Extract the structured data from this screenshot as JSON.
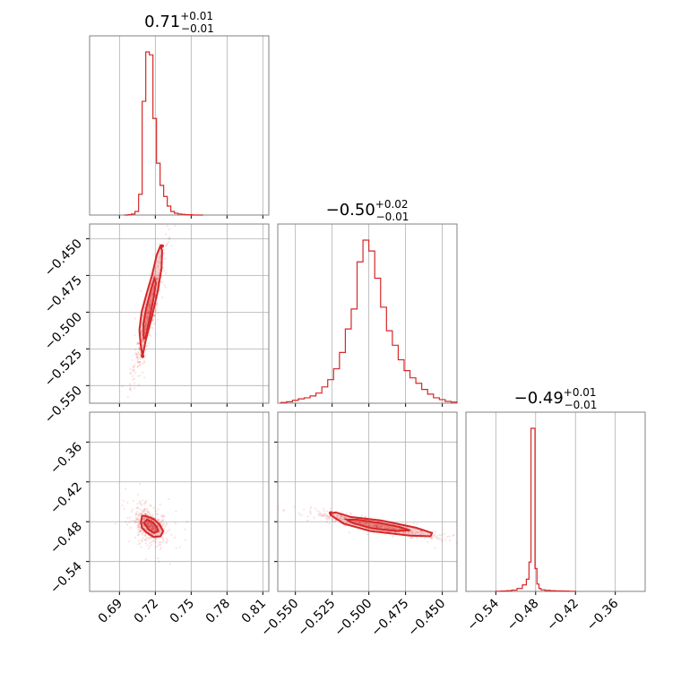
{
  "chart_data": {
    "type": "corner",
    "color": "#d62728",
    "grid": true,
    "parameters": [
      {
        "index": 0,
        "median": "0.71",
        "plus": "+0.01",
        "minus": "−0.01",
        "range": [
          0.665,
          0.815
        ],
        "ticks": [
          0.69,
          0.72,
          0.75,
          0.78,
          0.81
        ],
        "tick_labels": [
          "0.69",
          "0.72",
          "0.75",
          "0.78",
          "0.81"
        ]
      },
      {
        "index": 1,
        "median": "−0.50",
        "plus": "+0.02",
        "minus": "−0.01",
        "range": [
          -0.562,
          -0.44
        ],
        "ticks": [
          -0.55,
          -0.525,
          -0.5,
          -0.475,
          -0.45
        ],
        "tick_labels": [
          "−0.550",
          "−0.525",
          "−0.500",
          "−0.475",
          "−0.450"
        ]
      },
      {
        "index": 2,
        "median": "−0.49",
        "plus": "+0.01",
        "minus": "−0.01",
        "range": [
          -0.585,
          -0.315
        ],
        "ticks": [
          -0.54,
          -0.48,
          -0.42,
          -0.36
        ],
        "tick_labels": [
          "−0.54",
          "−0.48",
          "−0.42",
          "−0.36"
        ]
      }
    ],
    "histograms": [
      {
        "param": 0,
        "bins": [
          0.694,
          0.697,
          0.7,
          0.703,
          0.706,
          0.709,
          0.712,
          0.715,
          0.718,
          0.721,
          0.724,
          0.727,
          0.73,
          0.733,
          0.736,
          0.739,
          0.742,
          0.745,
          0.748,
          0.751,
          0.754,
          0.757,
          0.76
        ],
        "counts": [
          0,
          1,
          3,
          10,
          58,
          318,
          456,
          448,
          270,
          145,
          83,
          52,
          25,
          10,
          5,
          3,
          2,
          1,
          1,
          0,
          0,
          0
        ]
      },
      {
        "param": 1,
        "bins": [
          -0.56,
          -0.556,
          -0.552,
          -0.548,
          -0.544,
          -0.54,
          -0.536,
          -0.532,
          -0.528,
          -0.524,
          -0.52,
          -0.516,
          -0.512,
          -0.508,
          -0.504,
          -0.5,
          -0.496,
          -0.492,
          -0.488,
          -0.484,
          -0.48,
          -0.476,
          -0.472,
          -0.468,
          -0.464,
          -0.46,
          -0.456,
          -0.452,
          -0.448,
          -0.444,
          -0.44
        ],
        "counts": [
          2,
          4,
          8,
          12,
          15,
          20,
          28,
          45,
          65,
          95,
          140,
          205,
          260,
          390,
          450,
          420,
          345,
          265,
          200,
          160,
          120,
          90,
          70,
          55,
          38,
          25,
          15,
          10,
          5,
          3
        ]
      },
      {
        "param": 2,
        "bins": [
          -0.54,
          -0.532,
          -0.524,
          -0.516,
          -0.508,
          -0.5,
          -0.494,
          -0.49,
          -0.487,
          -0.484,
          -0.481,
          -0.478,
          -0.475,
          -0.472,
          -0.466,
          -0.458,
          -0.45,
          -0.44,
          -0.43,
          -0.42
        ],
        "counts": [
          1,
          2,
          4,
          8,
          18,
          40,
          75,
          180,
          1000,
          1000,
          140,
          45,
          18,
          10,
          6,
          4,
          3,
          2,
          1
        ]
      }
    ],
    "scatter_2d": [
      {
        "x_param": 0,
        "y_param": 1,
        "center": [
          0.7135,
          -0.505
        ],
        "sd": [
          0.007,
          0.022
        ],
        "corr": 0.93
      },
      {
        "x_param": 0,
        "y_param": 2,
        "center": [
          0.7155,
          -0.485
        ],
        "sd": [
          0.0065,
          0.012
        ],
        "corr": -0.35
      },
      {
        "x_param": 1,
        "y_param": 2,
        "center": [
          -0.495,
          -0.486
        ],
        "sd": [
          0.021,
          0.01
        ],
        "corr": -0.9
      }
    ],
    "contours_2d": [
      {
        "x_param": 0,
        "y_param": 1,
        "outer": [
          [
            0.7093,
            -0.53
          ],
          [
            0.7077,
            -0.522
          ],
          [
            0.7067,
            -0.512
          ],
          [
            0.7085,
            -0.5
          ],
          [
            0.7125,
            -0.488
          ],
          [
            0.7172,
            -0.475
          ],
          [
            0.7212,
            -0.461
          ],
          [
            0.7242,
            -0.455
          ],
          [
            0.7257,
            -0.458
          ],
          [
            0.7252,
            -0.47
          ],
          [
            0.722,
            -0.486
          ],
          [
            0.7172,
            -0.503
          ],
          [
            0.7123,
            -0.518
          ]
        ],
        "inner": [
          [
            0.7103,
            -0.518
          ],
          [
            0.71,
            -0.508
          ],
          [
            0.7122,
            -0.498
          ],
          [
            0.7162,
            -0.485
          ],
          [
            0.7192,
            -0.477
          ],
          [
            0.7205,
            -0.48
          ],
          [
            0.7182,
            -0.492
          ],
          [
            0.7148,
            -0.506
          ],
          [
            0.712,
            -0.517
          ]
        ]
      },
      {
        "x_param": 0,
        "y_param": 2,
        "outer": [
          [
            0.708,
            -0.481
          ],
          [
            0.709,
            -0.471
          ],
          [
            0.7135,
            -0.472
          ],
          [
            0.7185,
            -0.476
          ],
          [
            0.7235,
            -0.484
          ],
          [
            0.7265,
            -0.494
          ],
          [
            0.7245,
            -0.502
          ],
          [
            0.7185,
            -0.503
          ],
          [
            0.7125,
            -0.496
          ],
          [
            0.7088,
            -0.489
          ]
        ],
        "inner": [
          [
            0.7105,
            -0.482
          ],
          [
            0.713,
            -0.477
          ],
          [
            0.718,
            -0.481
          ],
          [
            0.7212,
            -0.488
          ],
          [
            0.7225,
            -0.494
          ],
          [
            0.719,
            -0.497
          ],
          [
            0.7145,
            -0.492
          ]
        ]
      },
      {
        "x_param": 1,
        "y_param": 2,
        "outer": [
          [
            -0.526,
            -0.467
          ],
          [
            -0.5225,
            -0.466
          ],
          [
            -0.512,
            -0.473
          ],
          [
            -0.492,
            -0.478
          ],
          [
            -0.468,
            -0.489
          ],
          [
            -0.457,
            -0.497
          ],
          [
            -0.458,
            -0.502
          ],
          [
            -0.472,
            -0.501
          ],
          [
            -0.499,
            -0.494
          ],
          [
            -0.517,
            -0.483
          ],
          [
            -0.526,
            -0.47
          ]
        ],
        "inner": [
          [
            -0.515,
            -0.477
          ],
          [
            -0.508,
            -0.477
          ],
          [
            -0.492,
            -0.482
          ],
          [
            -0.479,
            -0.488
          ],
          [
            -0.472,
            -0.493
          ],
          [
            -0.481,
            -0.494
          ],
          [
            -0.498,
            -0.49
          ],
          [
            -0.511,
            -0.482
          ]
        ]
      }
    ],
    "outer_dots_2d": [
      {
        "x_param": 0,
        "y_param": 1,
        "points": [
          [
            0.7093,
            -0.53
          ],
          [
            0.7257,
            -0.455
          ]
        ]
      },
      {
        "x_param": 1,
        "y_param": 2,
        "points": [
          [
            -0.526,
            -0.467
          ]
        ]
      }
    ]
  }
}
